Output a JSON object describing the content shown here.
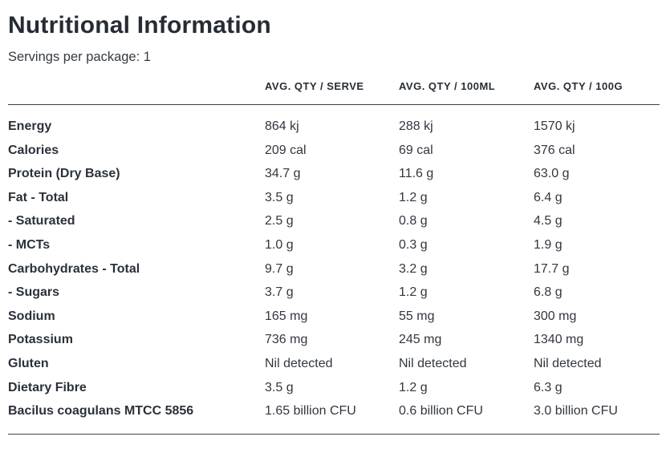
{
  "page": {
    "title": "Nutritional Information",
    "subtitle": "Servings per package: 1"
  },
  "colors": {
    "text": "#2e343c",
    "heading": "#262c34",
    "rule": "#3b4046",
    "background": "#ffffff"
  },
  "table": {
    "columns": [
      "AVG. QTY / SERVE",
      "AVG. QTY / 100ML",
      "AVG. QTY / 100G"
    ],
    "rows": [
      {
        "label": "Energy",
        "serve": "864 kj",
        "per100ml": "288 kj",
        "per100g": "1570 kj"
      },
      {
        "label": "Calories",
        "serve": "209 cal",
        "per100ml": "69 cal",
        "per100g": "376 cal"
      },
      {
        "label": "Protein (Dry Base)",
        "serve": "34.7 g",
        "per100ml": "11.6 g",
        "per100g": "63.0 g"
      },
      {
        "label": "Fat - Total",
        "serve": "3.5 g",
        "per100ml": "1.2 g",
        "per100g": "6.4 g"
      },
      {
        "label": "- Saturated",
        "serve": "2.5 g",
        "per100ml": "0.8 g",
        "per100g": "4.5 g"
      },
      {
        "label": "- MCTs",
        "serve": "1.0 g",
        "per100ml": "0.3 g",
        "per100g": "1.9 g"
      },
      {
        "label": "Carbohydrates - Total",
        "serve": "9.7 g",
        "per100ml": "3.2 g",
        "per100g": "17.7 g"
      },
      {
        "label": "- Sugars",
        "serve": "3.7 g",
        "per100ml": "1.2 g",
        "per100g": "6.8 g"
      },
      {
        "label": "Sodium",
        "serve": "165 mg",
        "per100ml": "55 mg",
        "per100g": "300 mg"
      },
      {
        "label": "Potassium",
        "serve": "736 mg",
        "per100ml": "245 mg",
        "per100g": "1340 mg"
      },
      {
        "label": "Gluten",
        "serve": "Nil detected",
        "per100ml": "Nil detected",
        "per100g": "Nil detected"
      },
      {
        "label": "Dietary Fibre",
        "serve": "3.5 g",
        "per100ml": "1.2 g",
        "per100g": "6.3 g"
      },
      {
        "label": "Bacilus coagulans MTCC 5856",
        "serve": "1.65 billion CFU",
        "per100ml": "0.6 billion CFU",
        "per100g": "3.0 billion CFU"
      }
    ]
  }
}
